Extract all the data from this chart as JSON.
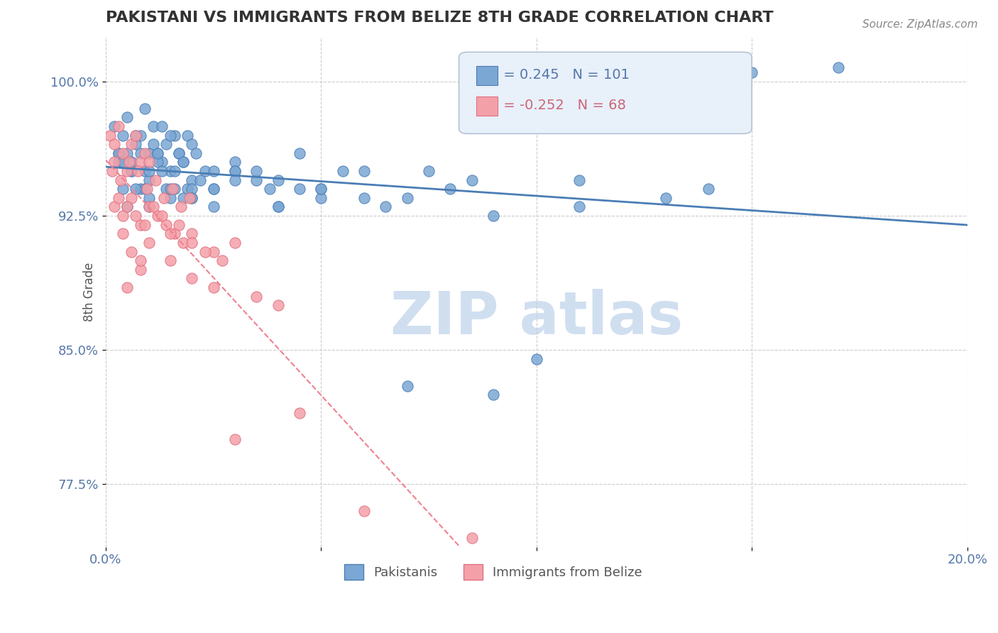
{
  "title": "PAKISTANI VS IMMIGRANTS FROM BELIZE 8TH GRADE CORRELATION CHART",
  "source_text": "Source: ZipAtlas.com",
  "xlabel": "",
  "ylabel": "8th Grade",
  "xlim": [
    0.0,
    20.0
  ],
  "ylim": [
    74.0,
    102.5
  ],
  "xticks": [
    0.0,
    5.0,
    10.0,
    15.0,
    20.0
  ],
  "xticklabels": [
    "0.0%",
    "",
    "",
    "",
    "20.0%"
  ],
  "yticks": [
    77.5,
    85.0,
    92.5,
    100.0
  ],
  "yticklabels": [
    "77.5%",
    "85.0%",
    "92.5%",
    "100.0%"
  ],
  "blue_R": 0.245,
  "blue_N": 101,
  "pink_R": -0.252,
  "pink_N": 68,
  "blue_color": "#7ba7d4",
  "pink_color": "#f4a0a8",
  "trend_blue_color": "#4a7db5",
  "trend_pink_color": "#f08090",
  "grid_color": "#cccccc",
  "axis_color": "#5577aa",
  "title_color": "#333333",
  "watermark_color": "#d0dff0",
  "legend_box_color": "#e8f0fa",
  "blue_scatter_x": [
    0.2,
    0.3,
    0.4,
    0.5,
    0.6,
    0.7,
    0.8,
    0.9,
    1.0,
    1.1,
    1.2,
    1.3,
    1.4,
    1.5,
    1.6,
    1.7,
    1.8,
    1.9,
    2.0,
    0.3,
    0.5,
    0.7,
    0.9,
    1.1,
    1.3,
    1.5,
    1.7,
    1.9,
    2.1,
    2.3,
    0.4,
    0.6,
    0.8,
    1.0,
    1.2,
    1.4,
    1.6,
    1.8,
    2.0,
    2.5,
    3.0,
    0.5,
    0.8,
    1.0,
    1.5,
    2.0,
    2.5,
    3.0,
    3.5,
    4.0,
    4.5,
    5.0,
    1.0,
    1.5,
    2.0,
    2.5,
    3.5,
    4.0,
    5.0,
    6.0,
    7.0,
    8.0,
    9.0,
    10.0,
    11.0,
    13.0,
    15.0,
    0.3,
    0.6,
    0.9,
    1.2,
    1.8,
    2.2,
    3.0,
    3.8,
    4.5,
    5.5,
    6.5,
    7.5,
    8.5,
    0.4,
    0.7,
    1.0,
    1.3,
    1.6,
    2.0,
    2.5,
    3.0,
    4.0,
    5.0,
    6.0,
    7.0,
    9.0,
    11.0,
    14.0,
    17.0
  ],
  "blue_scatter_y": [
    97.5,
    96.0,
    97.0,
    98.0,
    95.5,
    96.5,
    97.0,
    98.5,
    96.0,
    97.5,
    96.0,
    97.5,
    96.5,
    95.0,
    97.0,
    96.0,
    95.5,
    97.0,
    96.5,
    95.5,
    96.0,
    97.0,
    95.0,
    96.5,
    95.5,
    97.0,
    96.0,
    94.0,
    96.0,
    95.0,
    94.0,
    95.0,
    96.0,
    94.5,
    95.5,
    94.0,
    95.0,
    93.5,
    94.5,
    94.0,
    95.5,
    93.0,
    94.0,
    95.0,
    93.5,
    94.0,
    93.0,
    95.0,
    94.5,
    93.0,
    94.0,
    93.5,
    93.0,
    94.0,
    93.5,
    94.0,
    95.0,
    94.5,
    94.0,
    95.0,
    93.5,
    94.0,
    92.5,
    84.5,
    93.0,
    93.5,
    100.5,
    96.0,
    95.0,
    94.0,
    96.0,
    95.5,
    94.5,
    95.0,
    94.0,
    96.0,
    95.0,
    93.0,
    95.0,
    94.5,
    95.5,
    94.0,
    93.5,
    95.0,
    94.0,
    93.5,
    95.0,
    94.5,
    93.0,
    94.0,
    93.5,
    83.0,
    82.5,
    94.5,
    94.0,
    100.8
  ],
  "pink_scatter_x": [
    0.1,
    0.2,
    0.3,
    0.4,
    0.5,
    0.6,
    0.7,
    0.8,
    0.9,
    1.0,
    0.15,
    0.35,
    0.55,
    0.75,
    0.95,
    1.15,
    1.35,
    1.55,
    1.75,
    1.95,
    0.2,
    0.4,
    0.6,
    0.8,
    1.0,
    1.2,
    1.4,
    1.6,
    1.8,
    2.0,
    2.5,
    3.0,
    0.3,
    0.5,
    0.7,
    0.9,
    1.1,
    1.3,
    1.5,
    1.7,
    2.0,
    2.3,
    2.7,
    0.4,
    0.6,
    0.8,
    1.0,
    1.5,
    2.0,
    2.5,
    3.5,
    4.0,
    0.2,
    0.5,
    0.8,
    3.0,
    4.5,
    6.0,
    8.5
  ],
  "pink_scatter_y": [
    97.0,
    96.5,
    97.5,
    96.0,
    95.0,
    96.5,
    97.0,
    95.5,
    96.0,
    95.5,
    95.0,
    94.5,
    95.5,
    95.0,
    94.0,
    94.5,
    93.5,
    94.0,
    93.0,
    93.5,
    93.0,
    92.5,
    93.5,
    92.0,
    93.0,
    92.5,
    92.0,
    91.5,
    91.0,
    91.5,
    90.5,
    91.0,
    93.5,
    93.0,
    92.5,
    92.0,
    93.0,
    92.5,
    91.5,
    92.0,
    91.0,
    90.5,
    90.0,
    91.5,
    90.5,
    89.5,
    91.0,
    90.0,
    89.0,
    88.5,
    88.0,
    87.5,
    95.5,
    88.5,
    90.0,
    80.0,
    81.5,
    76.0,
    74.5
  ]
}
